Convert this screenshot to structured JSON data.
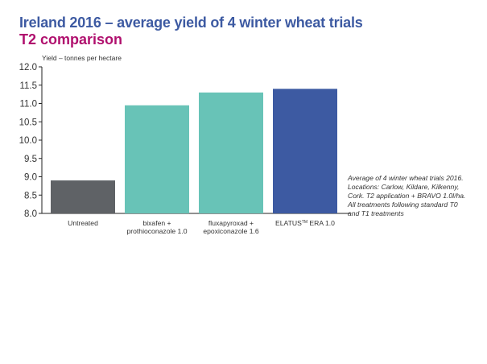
{
  "title": "Ireland 2016 – average yield of 4 winter wheat trials",
  "subtitle": "T2 comparison",
  "note_lines": [
    "Average of 4 winter wheat trials 2016.",
    "Locations: Carlow, Kildare, Kilkenny,",
    "Cork. T2 application + BRAVO 1.0l/ha.",
    "All treatments following standard T0",
    "and T1 treatments"
  ],
  "colors": {
    "untreated": "#5f6266",
    "competitor": "#68c3b7",
    "elatus": "#3d5aa2",
    "title": "#3d5aa2",
    "subtitle": "#b0106e"
  },
  "chart_data": {
    "type": "bar",
    "ylabel": "Yield – tonnes per hectare",
    "ylim": [
      8.0,
      12.0
    ],
    "yticks": [
      "8.0",
      "8.5",
      "9.0",
      "9.5",
      "10.0",
      "10.5",
      "11.0",
      "11.5",
      "12.0"
    ],
    "grid": false,
    "categories": [
      [
        "Untreated"
      ],
      [
        "bixafen +",
        "prothioconazole 1.0"
      ],
      [
        "fluxapyroxad +",
        "epoxiconazole 1.6"
      ],
      [
        "ELATUS",
        "TM",
        " ERA 1.0"
      ]
    ],
    "values": [
      8.9,
      10.95,
      11.3,
      11.4
    ]
  }
}
